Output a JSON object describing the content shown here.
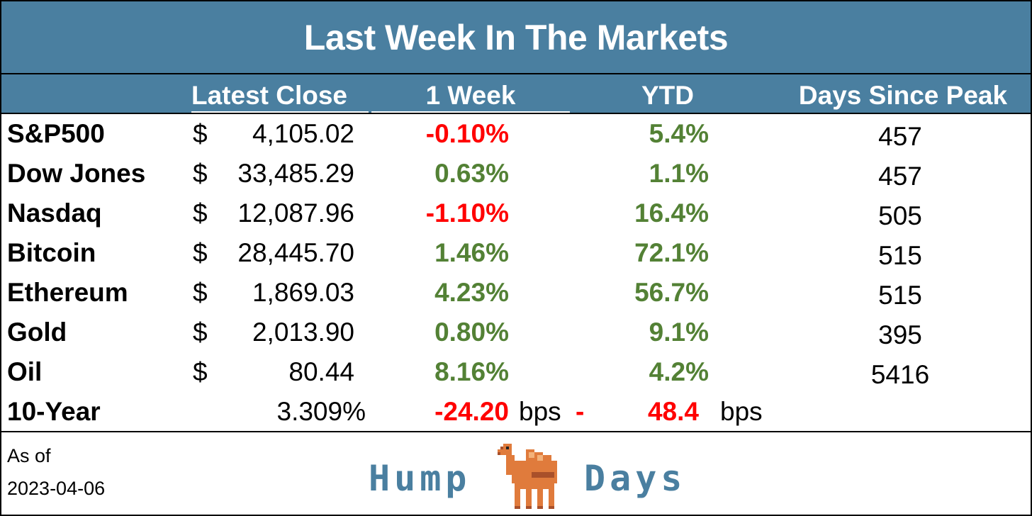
{
  "title": "Last Week In The Markets",
  "columns": {
    "latest_close": "Latest Close",
    "week": "1 Week",
    "ytd": "YTD",
    "days_since_peak": "Days Since Peak"
  },
  "rows": [
    {
      "name": "S&P500",
      "currency": "$",
      "close": "4,105.02",
      "week": "-0.10%",
      "ytd": "5.4%",
      "days": "457",
      "week_dir": "neg",
      "ytd_dir": "pos"
    },
    {
      "name": "Dow Jones",
      "currency": "$",
      "close": "33,485.29",
      "week": "0.63%",
      "ytd": "1.1%",
      "days": "457",
      "week_dir": "pos",
      "ytd_dir": "pos"
    },
    {
      "name": "Nasdaq",
      "currency": "$",
      "close": "12,087.96",
      "week": "-1.10%",
      "ytd": "16.4%",
      "days": "505",
      "week_dir": "neg",
      "ytd_dir": "pos"
    },
    {
      "name": "Bitcoin",
      "currency": "$",
      "close": "28,445.70",
      "week": "1.46%",
      "ytd": "72.1%",
      "days": "515",
      "week_dir": "pos",
      "ytd_dir": "pos"
    },
    {
      "name": "Ethereum",
      "currency": "$",
      "close": "1,869.03",
      "week": "4.23%",
      "ytd": "56.7%",
      "days": "515",
      "week_dir": "pos",
      "ytd_dir": "pos"
    },
    {
      "name": "Gold",
      "currency": "$",
      "close": "2,013.90",
      "week": "0.80%",
      "ytd": "9.1%",
      "days": "395",
      "week_dir": "pos",
      "ytd_dir": "pos"
    },
    {
      "name": "Oil",
      "currency": "$",
      "close": "80.44",
      "week": "8.16%",
      "ytd": "4.2%",
      "days": "5416",
      "week_dir": "pos",
      "ytd_dir": "pos"
    }
  ],
  "yield_row": {
    "name": "10-Year",
    "value": "3.309%",
    "week": "-24.20",
    "week_unit": "bps",
    "ytd_sign": "-",
    "ytd": "48.4",
    "ytd_unit": "bps"
  },
  "footer": {
    "as_of_label": "As of",
    "as_of_date": "2023-04-06",
    "brand_left": "Hump",
    "brand_right": "Days",
    "logo_icon": "camel-icon"
  },
  "colors": {
    "header_bg": "#4a7fa0",
    "positive": "#538135",
    "negative": "#ff0000",
    "brand_text": "#4a7fa0",
    "camel_body": "#e07b3c"
  }
}
